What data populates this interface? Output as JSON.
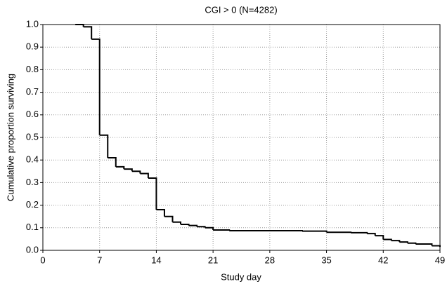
{
  "chart_data": {
    "type": "line",
    "step": "post",
    "title": "CGI > 0 (N=4282)",
    "x_label": "Study day",
    "y_label": "Cumulative proportion surviving",
    "color": "#000000",
    "grid": true,
    "x": [
      4,
      5,
      6,
      7,
      8,
      9,
      10,
      11,
      12,
      13,
      14,
      15,
      16,
      17,
      18,
      19,
      20,
      21,
      23,
      32,
      35,
      38,
      40,
      41,
      42,
      43,
      44,
      45,
      46,
      48,
      49
    ],
    "values": [
      1.0,
      0.99,
      0.935,
      0.51,
      0.41,
      0.37,
      0.36,
      0.35,
      0.34,
      0.32,
      0.18,
      0.15,
      0.125,
      0.115,
      0.11,
      0.105,
      0.1,
      0.09,
      0.087,
      0.085,
      0.08,
      0.078,
      0.074,
      0.065,
      0.048,
      0.043,
      0.037,
      0.032,
      0.028,
      0.02,
      0.015
    ],
    "xlim": [
      0,
      49
    ],
    "xticks": [
      0,
      7,
      14,
      21,
      28,
      35,
      42,
      49
    ],
    "ylim": [
      0,
      1
    ],
    "yticks": [
      {
        "value": 0,
        "label": "0.0"
      },
      0.1,
      0.2,
      0.3,
      0.4,
      0.5,
      0.6,
      0.7,
      0.8,
      0.9,
      {
        "value": 1,
        "label": "1.0"
      }
    ]
  }
}
